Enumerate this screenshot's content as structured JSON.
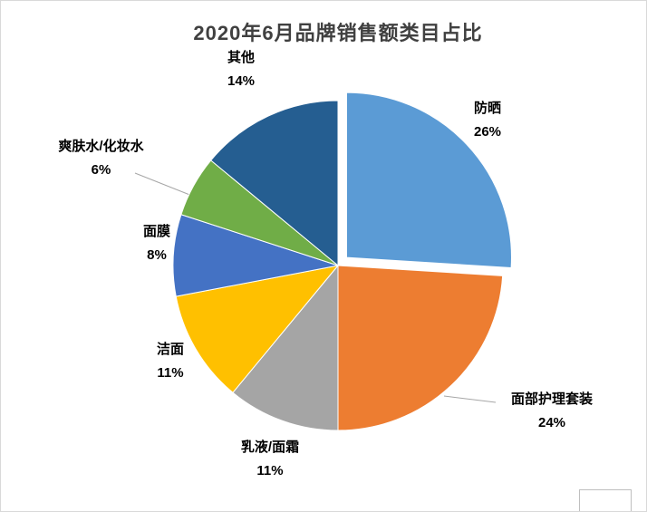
{
  "chart_data": {
    "type": "pie",
    "title": "2020年6月品牌销售额类目占比",
    "unit": "%",
    "direction": "clockwise",
    "start_angle_deg": 0,
    "legend": "none",
    "slices": [
      {
        "key": "sunscreen",
        "label": "防晒",
        "value": 26,
        "pct": "26%",
        "color": "#5B9BD5",
        "exploded": true
      },
      {
        "key": "facial-care-set",
        "label": "面部护理套装",
        "value": 24,
        "pct": "24%",
        "color": "#ED7D31",
        "exploded": false
      },
      {
        "key": "lotion-cream",
        "label": "乳液/面霜",
        "value": 11,
        "pct": "11%",
        "color": "#A5A5A5",
        "exploded": false
      },
      {
        "key": "cleanser",
        "label": "洁面",
        "value": 11,
        "pct": "11%",
        "color": "#FFC000",
        "exploded": false
      },
      {
        "key": "face-mask",
        "label": "面膜",
        "value": 8,
        "pct": "8%",
        "color": "#4472C4",
        "exploded": false
      },
      {
        "key": "toner",
        "label": "爽肤水/化妆水",
        "value": 6,
        "pct": "6%",
        "color": "#70AD47",
        "exploded": false
      },
      {
        "key": "other",
        "label": "其他",
        "value": 14,
        "pct": "14%",
        "color": "#255E91",
        "exploded": false
      }
    ]
  }
}
